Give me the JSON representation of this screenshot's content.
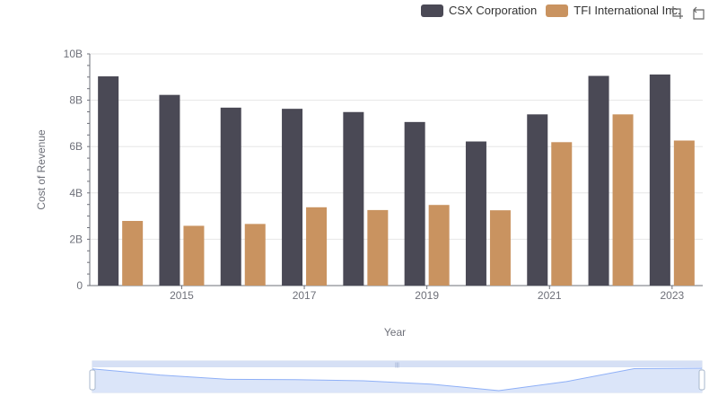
{
  "colors": {
    "csx": "#4a4955",
    "tfi": "#c99360",
    "grid": "#e6e6e6",
    "axis": "#6e7079",
    "zoom_fill": "#dbe5f9",
    "zoom_line": "#8fb0f7"
  },
  "legend": {
    "items": [
      {
        "label": "CSX Corporation",
        "color_key": "csx"
      },
      {
        "label": "TFI International Inc.",
        "color_key": "tfi"
      }
    ]
  },
  "toolbox": {
    "icons": [
      "zoom-select-icon",
      "zoom-reset-icon"
    ]
  },
  "chart_data": {
    "type": "bar",
    "x": [
      2014,
      2015,
      2016,
      2017,
      2018,
      2019,
      2020,
      2021,
      2022,
      2023
    ],
    "x_tick_labels": [
      "2015",
      "2017",
      "2019",
      "2021",
      "2023"
    ],
    "xlabel": "Year",
    "ylabel": "Cost of Revenue",
    "ylim": [
      0,
      10000000000
    ],
    "y_tick_labels": [
      "0",
      "2B",
      "4B",
      "6B",
      "8B",
      "10B"
    ],
    "grid": true,
    "legend_position": "top-right",
    "series": [
      {
        "name": "CSX Corporation",
        "values": [
          9030000000,
          8230000000,
          7680000000,
          7630000000,
          7490000000,
          7060000000,
          6220000000,
          7390000000,
          9050000000,
          9110000000
        ]
      },
      {
        "name": "TFI International Inc.",
        "values": [
          2790000000,
          2580000000,
          2660000000,
          3380000000,
          3260000000,
          3480000000,
          3250000000,
          6190000000,
          7390000000,
          6260000000
        ]
      }
    ]
  }
}
